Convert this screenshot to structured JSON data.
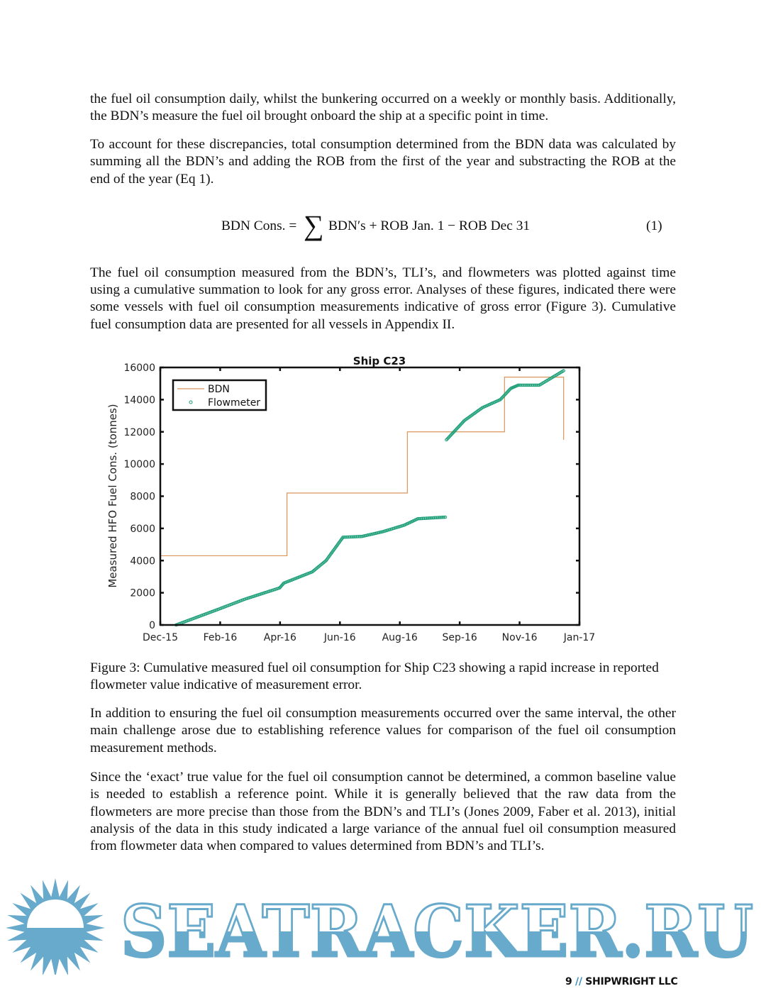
{
  "paragraphs": {
    "p1": "the fuel oil consumption daily, whilst the bunkering occurred on a weekly or monthly basis. Additionally, the BDN’s measure the fuel oil brought onboard the ship at a specific point in time.",
    "p2": "To account for these discrepancies, total consumption determined from the BDN data was calculated by summing all the BDN’s and adding the ROB from the first of the year and substracting the ROB at the end of the year (Eq 1).",
    "p3": "The fuel oil consumption measured from the BDN’s, TLI’s, and flowmeters was plotted against time using a cumulative summation to look for any gross error. Analyses of these figures, indicated there were some vessels with fuel oil consumption measurements indicative of gross error (Figure 3). Cumulative fuel consumption data are presented for all vessels in Appendix II.",
    "caption": "Figure 3: Cumulative measured fuel oil consumption for Ship C23 showing a rapid increase in reported flowmeter value indicative of measurement error.",
    "p4": "In addition to ensuring the fuel oil consumption measurements occurred over the same interval, the other main challenge arose due to establishing reference values for comparison of the fuel oil consumption measurement methods.",
    "p5": "Since the ‘exact’ true value for the fuel oil consumption cannot be determined, a common baseline value is needed to establish a reference point.  While it is generally believed that the raw data from the flowmeters are more precise than those from the BDN’s and TLI’s (Jones 2009, Faber et al. 2013), initial analysis of the data in this study indicated a large variance of the annual fuel oil consumption measured from flowmeter data when compared to values determined from BDN’s and TLI’s."
  },
  "equation": {
    "lhs": "BDN Cons. =",
    "sum_symbol": "∑",
    "rhs": "BDN′s + ROB Jan. 1 − ROB Dec 31",
    "number": "(1)"
  },
  "chart_data": {
    "type": "line",
    "title": "Ship C23",
    "xlabel": "",
    "ylabel": "Measured HFO Fuel Cons. (tonnes)",
    "xlim": [
      "2015-12-01",
      "2017-01-01"
    ],
    "ylim": [
      0,
      16000
    ],
    "xtick_labels": [
      "Dec-15",
      "Feb-16",
      "Apr-16",
      "Jun-16",
      "Aug-16",
      "Sep-16",
      "Nov-16",
      "Jan-17"
    ],
    "yticks": [
      0,
      2000,
      4000,
      6000,
      8000,
      10000,
      12000,
      14000,
      16000
    ],
    "grid": false,
    "legend_position": "top-left",
    "series": [
      {
        "name": "BDN",
        "style": "step-line",
        "color": "#d9955a",
        "points": [
          {
            "x": "2015-12-01",
            "y": 4300
          },
          {
            "x": "2016-03-30",
            "y": 4300
          },
          {
            "x": "2016-03-30",
            "y": 8200
          },
          {
            "x": "2016-07-22",
            "y": 8200
          },
          {
            "x": "2016-07-22",
            "y": 12000
          },
          {
            "x": "2016-10-22",
            "y": 12000
          },
          {
            "x": "2016-10-22",
            "y": 15400
          },
          {
            "x": "2016-12-17",
            "y": 15400
          },
          {
            "x": "2016-12-17",
            "y": 11500
          }
        ]
      },
      {
        "name": "Flowmeter",
        "style": "circle-markers",
        "color": "#1a9e77",
        "segments": [
          [
            {
              "x": "2015-12-16",
              "y": 0
            },
            {
              "x": "2016-01-26",
              "y": 1000
            },
            {
              "x": "2016-02-19",
              "y": 1600
            },
            {
              "x": "2016-03-23",
              "y": 2300
            },
            {
              "x": "2016-03-27",
              "y": 2600
            },
            {
              "x": "2016-04-23",
              "y": 3300
            },
            {
              "x": "2016-05-06",
              "y": 4000
            },
            {
              "x": "2016-05-22",
              "y": 5450
            },
            {
              "x": "2016-06-09",
              "y": 5500
            },
            {
              "x": "2016-06-29",
              "y": 5800
            },
            {
              "x": "2016-07-19",
              "y": 6200
            },
            {
              "x": "2016-08-01",
              "y": 6600
            },
            {
              "x": "2016-08-27",
              "y": 6700
            }
          ],
          [
            {
              "x": "2016-08-28",
              "y": 11500
            },
            {
              "x": "2016-09-14",
              "y": 12700
            },
            {
              "x": "2016-10-01",
              "y": 13500
            },
            {
              "x": "2016-10-18",
              "y": 14000
            },
            {
              "x": "2016-10-28",
              "y": 14700
            },
            {
              "x": "2016-11-04",
              "y": 14900
            },
            {
              "x": "2016-11-24",
              "y": 14900
            },
            {
              "x": "2016-12-17",
              "y": 15800
            }
          ]
        ]
      }
    ]
  },
  "watermark": {
    "text": "SEATRACKER.RU",
    "color": "#68aacb"
  },
  "footer": {
    "page_number": "9",
    "separator": "//",
    "company": "SHIPWRIGHT LLC"
  }
}
